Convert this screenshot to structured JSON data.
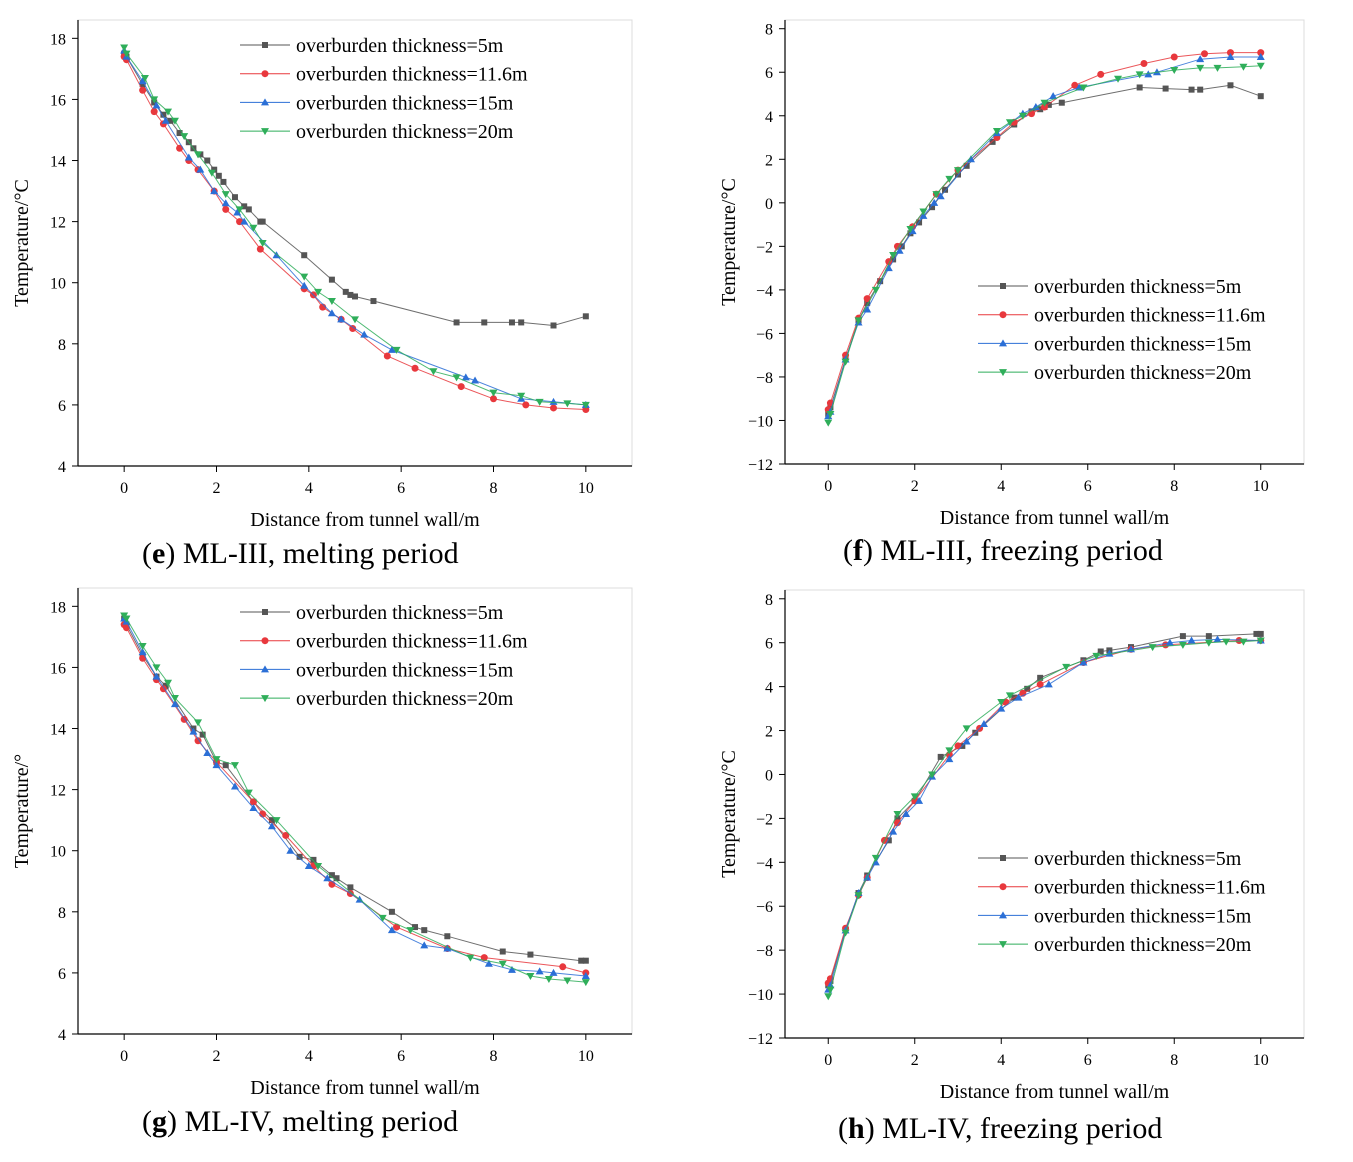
{
  "series_meta": [
    {
      "name": "overburden thickness=5m",
      "color": "#555555",
      "marker": "square"
    },
    {
      "name": "overburden thickness=11.6m",
      "color": "#e8383d",
      "marker": "circle"
    },
    {
      "name": "overburden thickness=15m",
      "color": "#2b6fd6",
      "marker": "triangle-up"
    },
    {
      "name": "overburden thickness=20m",
      "color": "#2fae5a",
      "marker": "triangle-down"
    }
  ],
  "captions": [
    {
      "letter": "e",
      "text": ") ML-III, melting period"
    },
    {
      "letter": "f",
      "text": ") ML-III, freezing period"
    },
    {
      "letter": "g",
      "text": ") ML-IV, melting period"
    },
    {
      "letter": "h",
      "text": ") ML-IV, freezing period"
    }
  ],
  "chart_data": [
    {
      "type": "line",
      "panel": "e",
      "xlabel": "Distance from tunnel wall/m",
      "ylabel": "Temperature/°C",
      "xlim": [
        -1,
        11
      ],
      "ylim": [
        4,
        18.6
      ],
      "xticks": [
        0,
        2,
        4,
        6,
        8,
        10
      ],
      "yticks": [
        4,
        6,
        8,
        10,
        12,
        14,
        16,
        18
      ],
      "legend": "top-right",
      "series": [
        {
          "name": "overburden thickness=5m",
          "x": [
            0,
            0.05,
            0.4,
            0.65,
            0.85,
            1.0,
            1.2,
            1.4,
            1.5,
            1.65,
            1.8,
            1.95,
            2.05,
            2.15,
            2.4,
            2.6,
            2.7,
            2.95,
            3.0,
            3.9,
            4.5,
            4.8,
            4.9,
            5.0,
            5.4,
            7.2,
            7.8,
            8.4,
            8.6,
            9.3,
            10.0
          ],
          "y": [
            17.5,
            17.4,
            16.5,
            15.9,
            15.5,
            15.3,
            14.9,
            14.6,
            14.4,
            14.2,
            14.0,
            13.7,
            13.5,
            13.3,
            12.8,
            12.5,
            12.4,
            12.0,
            12.0,
            10.9,
            10.1,
            9.7,
            9.6,
            9.55,
            9.4,
            8.7,
            8.7,
            8.7,
            8.7,
            8.6,
            8.9
          ]
        },
        {
          "name": "overburden thickness=11.6m",
          "x": [
            0,
            0.05,
            0.4,
            0.65,
            0.85,
            1.2,
            1.4,
            1.6,
            1.95,
            2.2,
            2.5,
            2.95,
            3.9,
            4.1,
            4.3,
            4.7,
            4.95,
            5.7,
            6.3,
            7.3,
            8.0,
            8.7,
            9.3,
            10.0
          ],
          "y": [
            17.4,
            17.3,
            16.3,
            15.6,
            15.2,
            14.4,
            14.0,
            13.7,
            13.0,
            12.4,
            12.0,
            11.1,
            9.8,
            9.6,
            9.2,
            8.8,
            8.5,
            7.6,
            7.2,
            6.6,
            6.2,
            6.0,
            5.9,
            5.85
          ]
        },
        {
          "name": "overburden thickness=15m",
          "x": [
            0,
            0.05,
            0.4,
            0.7,
            0.9,
            1.4,
            1.65,
            1.95,
            2.2,
            2.45,
            2.6,
            3.3,
            3.9,
            4.5,
            4.7,
            5.2,
            5.8,
            7.4,
            7.6,
            8.6,
            9.3,
            10.0
          ],
          "y": [
            17.6,
            17.4,
            16.6,
            15.8,
            15.3,
            14.1,
            13.7,
            13.0,
            12.6,
            12.3,
            12.0,
            10.9,
            9.9,
            9.0,
            8.8,
            8.3,
            7.8,
            6.9,
            6.8,
            6.2,
            6.1,
            6.0
          ]
        },
        {
          "name": "overburden thickness=20m",
          "x": [
            0,
            0.05,
            0.45,
            0.65,
            0.95,
            1.1,
            1.3,
            1.6,
            1.9,
            2.2,
            2.5,
            2.8,
            3.0,
            3.9,
            4.2,
            4.5,
            5.0,
            5.9,
            6.7,
            7.2,
            8.0,
            8.6,
            9.0,
            9.6,
            10.0
          ],
          "y": [
            17.7,
            17.5,
            16.7,
            16.0,
            15.6,
            15.3,
            14.8,
            14.2,
            13.6,
            12.9,
            12.4,
            11.8,
            11.3,
            10.2,
            9.7,
            9.4,
            8.8,
            7.8,
            7.1,
            6.9,
            6.4,
            6.3,
            6.1,
            6.05,
            6.0
          ]
        }
      ]
    },
    {
      "type": "line",
      "panel": "f",
      "xlabel": "Distance from tunnel wall/m",
      "ylabel": "Temperature/°C",
      "xlim": [
        -1,
        11
      ],
      "ylim": [
        -12,
        8.4
      ],
      "xticks": [
        0,
        2,
        4,
        6,
        8,
        10
      ],
      "yticks": [
        -12,
        -10,
        -8,
        -6,
        -4,
        -2,
        0,
        2,
        4,
        6,
        8
      ],
      "legend": "center-right",
      "series": [
        {
          "name": "overburden thickness=5m",
          "x": [
            0,
            0.05,
            0.4,
            0.7,
            0.9,
            1.2,
            1.5,
            1.7,
            1.9,
            2.1,
            2.4,
            2.7,
            3.0,
            3.2,
            3.8,
            4.3,
            4.7,
            4.9,
            5.0,
            5.1,
            5.4,
            7.2,
            7.8,
            8.4,
            8.6,
            9.3,
            10.0
          ],
          "y": [
            -9.7,
            -9.4,
            -7.2,
            -5.4,
            -4.6,
            -3.6,
            -2.6,
            -2.0,
            -1.4,
            -0.9,
            -0.2,
            0.6,
            1.3,
            1.7,
            2.8,
            3.6,
            4.2,
            4.3,
            4.4,
            4.5,
            4.6,
            5.3,
            5.25,
            5.2,
            5.2,
            5.4,
            4.9
          ]
        },
        {
          "name": "overburden thickness=11.6m",
          "x": [
            0,
            0.05,
            0.4,
            0.7,
            0.9,
            1.4,
            1.6,
            1.95,
            2.5,
            3.0,
            3.9,
            4.3,
            4.7,
            5.0,
            5.7,
            6.3,
            7.3,
            8.0,
            8.7,
            9.3,
            10.0
          ],
          "y": [
            -9.5,
            -9.2,
            -7.0,
            -5.3,
            -4.4,
            -2.7,
            -2.0,
            -1.1,
            0.4,
            1.5,
            3.0,
            3.7,
            4.1,
            4.4,
            5.4,
            5.9,
            6.4,
            6.7,
            6.85,
            6.9,
            6.9
          ]
        },
        {
          "name": "overburden thickness=15m",
          "x": [
            0,
            0.05,
            0.4,
            0.7,
            0.9,
            1.4,
            1.65,
            1.95,
            2.2,
            2.45,
            2.6,
            3.3,
            3.9,
            4.5,
            4.8,
            5.2,
            5.8,
            7.4,
            7.6,
            8.6,
            9.3,
            10.0
          ],
          "y": [
            -9.8,
            -9.6,
            -7.2,
            -5.5,
            -4.9,
            -3.0,
            -2.2,
            -1.3,
            -0.6,
            0.0,
            0.3,
            2.0,
            3.2,
            4.1,
            4.4,
            4.9,
            5.3,
            5.9,
            6.0,
            6.6,
            6.7,
            6.7
          ]
        },
        {
          "name": "overburden thickness=20m",
          "x": [
            0,
            0.05,
            0.4,
            0.7,
            1.1,
            1.5,
            1.9,
            2.2,
            2.5,
            2.8,
            3.0,
            3.9,
            4.2,
            4.5,
            5.0,
            5.9,
            6.7,
            7.2,
            8.0,
            8.6,
            9.0,
            9.6,
            10.0
          ],
          "y": [
            -10.1,
            -9.7,
            -7.3,
            -5.4,
            -4.0,
            -2.4,
            -1.2,
            -0.4,
            0.4,
            1.1,
            1.5,
            3.3,
            3.7,
            4.0,
            4.6,
            5.3,
            5.7,
            5.9,
            6.1,
            6.2,
            6.2,
            6.25,
            6.3
          ]
        }
      ]
    },
    {
      "type": "line",
      "panel": "g",
      "xlabel": "Distance from tunnel wall/m",
      "ylabel": "Temperature/°",
      "xlim": [
        -1,
        11
      ],
      "ylim": [
        4,
        18.6
      ],
      "xticks": [
        0,
        2,
        4,
        6,
        8,
        10
      ],
      "yticks": [
        4,
        6,
        8,
        10,
        12,
        14,
        16,
        18
      ],
      "legend": "top-right",
      "series": [
        {
          "name": "overburden thickness=5m",
          "x": [
            0,
            0.05,
            0.4,
            0.7,
            0.9,
            1.5,
            1.7,
            2.0,
            2.2,
            2.8,
            3.2,
            3.8,
            4.1,
            4.5,
            4.6,
            4.9,
            5.8,
            6.3,
            6.5,
            7.0,
            8.2,
            8.8,
            9.9,
            10.0
          ],
          "y": [
            17.6,
            17.4,
            16.4,
            15.7,
            15.4,
            14.0,
            13.8,
            12.9,
            12.8,
            11.6,
            11.0,
            9.8,
            9.7,
            9.2,
            9.1,
            8.8,
            8.0,
            7.5,
            7.4,
            7.2,
            6.7,
            6.6,
            6.4,
            6.4
          ]
        },
        {
          "name": "overburden thickness=11.6m",
          "x": [
            0,
            0.05,
            0.4,
            0.7,
            0.85,
            1.3,
            1.6,
            2.0,
            2.8,
            3.0,
            3.5,
            4.1,
            4.5,
            4.9,
            5.9,
            7.0,
            7.8,
            9.5,
            10.0
          ],
          "y": [
            17.4,
            17.3,
            16.3,
            15.6,
            15.3,
            14.3,
            13.6,
            12.9,
            11.6,
            11.2,
            10.5,
            9.5,
            8.9,
            8.6,
            7.5,
            6.8,
            6.5,
            6.2,
            6.0
          ]
        },
        {
          "name": "overburden thickness=15m",
          "x": [
            0,
            0.05,
            0.4,
            0.7,
            1.1,
            1.5,
            1.8,
            2.0,
            2.4,
            2.8,
            3.2,
            3.6,
            4.0,
            4.4,
            5.1,
            5.8,
            6.5,
            7.0,
            7.9,
            8.4,
            9.0,
            9.3,
            10.0
          ],
          "y": [
            17.6,
            17.5,
            16.5,
            15.7,
            14.8,
            13.9,
            13.2,
            12.8,
            12.1,
            11.4,
            10.8,
            10.0,
            9.5,
            9.1,
            8.4,
            7.4,
            6.9,
            6.8,
            6.3,
            6.1,
            6.05,
            6.0,
            5.9
          ]
        },
        {
          "name": "overburden thickness=20m",
          "x": [
            0,
            0.05,
            0.4,
            0.7,
            0.95,
            1.1,
            1.6,
            2.0,
            2.4,
            2.7,
            3.3,
            4.2,
            5.6,
            6.2,
            7.5,
            8.2,
            8.8,
            9.2,
            9.6,
            10.0
          ],
          "y": [
            17.7,
            17.6,
            16.7,
            16.0,
            15.5,
            15.0,
            14.2,
            13.0,
            12.8,
            11.9,
            11.0,
            9.5,
            7.8,
            7.4,
            6.5,
            6.3,
            5.9,
            5.8,
            5.75,
            5.7
          ]
        }
      ]
    },
    {
      "type": "line",
      "panel": "h",
      "xlabel": "Distance from tunnel wall/m",
      "ylabel": "Temperature/°C",
      "xlim": [
        -1,
        11
      ],
      "ylim": [
        -12,
        8.4
      ],
      "xticks": [
        0,
        2,
        4,
        6,
        8,
        10
      ],
      "yticks": [
        -12,
        -10,
        -8,
        -6,
        -4,
        -2,
        0,
        2,
        4,
        6,
        8
      ],
      "legend": "bottom-right",
      "series": [
        {
          "name": "overburden thickness=5m",
          "x": [
            0,
            0.05,
            0.4,
            0.7,
            0.9,
            1.4,
            1.6,
            2.0,
            2.6,
            3.1,
            3.4,
            4.3,
            4.6,
            4.9,
            5.9,
            6.3,
            6.5,
            7.0,
            8.2,
            8.8,
            9.9,
            10.0
          ],
          "y": [
            -9.6,
            -9.4,
            -7.1,
            -5.4,
            -4.6,
            -3.0,
            -2.0,
            -1.2,
            0.8,
            1.3,
            1.9,
            3.5,
            3.9,
            4.4,
            5.2,
            5.6,
            5.65,
            5.8,
            6.3,
            6.3,
            6.4,
            6.4
          ]
        },
        {
          "name": "overburden thickness=11.6m",
          "x": [
            0,
            0.05,
            0.4,
            0.7,
            0.9,
            1.3,
            1.6,
            2.0,
            2.8,
            3.0,
            3.5,
            4.1,
            4.5,
            4.9,
            5.9,
            7.0,
            7.8,
            9.5,
            10.0
          ],
          "y": [
            -9.5,
            -9.3,
            -7.0,
            -5.5,
            -4.7,
            -3.0,
            -2.2,
            -1.2,
            0.9,
            1.3,
            2.1,
            3.3,
            3.7,
            4.1,
            5.1,
            5.7,
            5.9,
            6.1,
            6.1
          ]
        },
        {
          "name": "overburden thickness=15m",
          "x": [
            0,
            0.05,
            0.4,
            0.7,
            0.9,
            1.1,
            1.5,
            1.8,
            2.1,
            2.4,
            2.8,
            3.2,
            3.6,
            4.0,
            4.4,
            5.1,
            5.9,
            6.5,
            7.0,
            7.9,
            8.4,
            9.0,
            10.0
          ],
          "y": [
            -9.8,
            -9.6,
            -7.1,
            -5.4,
            -4.7,
            -4.0,
            -2.6,
            -1.8,
            -1.2,
            -0.1,
            0.7,
            1.5,
            2.3,
            3.0,
            3.5,
            4.1,
            5.1,
            5.5,
            5.7,
            6.0,
            6.1,
            6.15,
            6.1
          ]
        },
        {
          "name": "overburden thickness=20m",
          "x": [
            0,
            0.05,
            0.4,
            0.7,
            1.1,
            1.6,
            2.0,
            2.4,
            2.8,
            3.2,
            4.0,
            4.2,
            5.5,
            6.2,
            7.5,
            8.2,
            8.8,
            9.2,
            9.6,
            10.0
          ],
          "y": [
            -10.1,
            -9.8,
            -7.2,
            -5.5,
            -3.8,
            -1.8,
            -1.0,
            0.0,
            1.1,
            2.1,
            3.3,
            3.6,
            4.9,
            5.4,
            5.8,
            5.9,
            6.0,
            6.05,
            6.05,
            6.1
          ]
        }
      ]
    }
  ]
}
